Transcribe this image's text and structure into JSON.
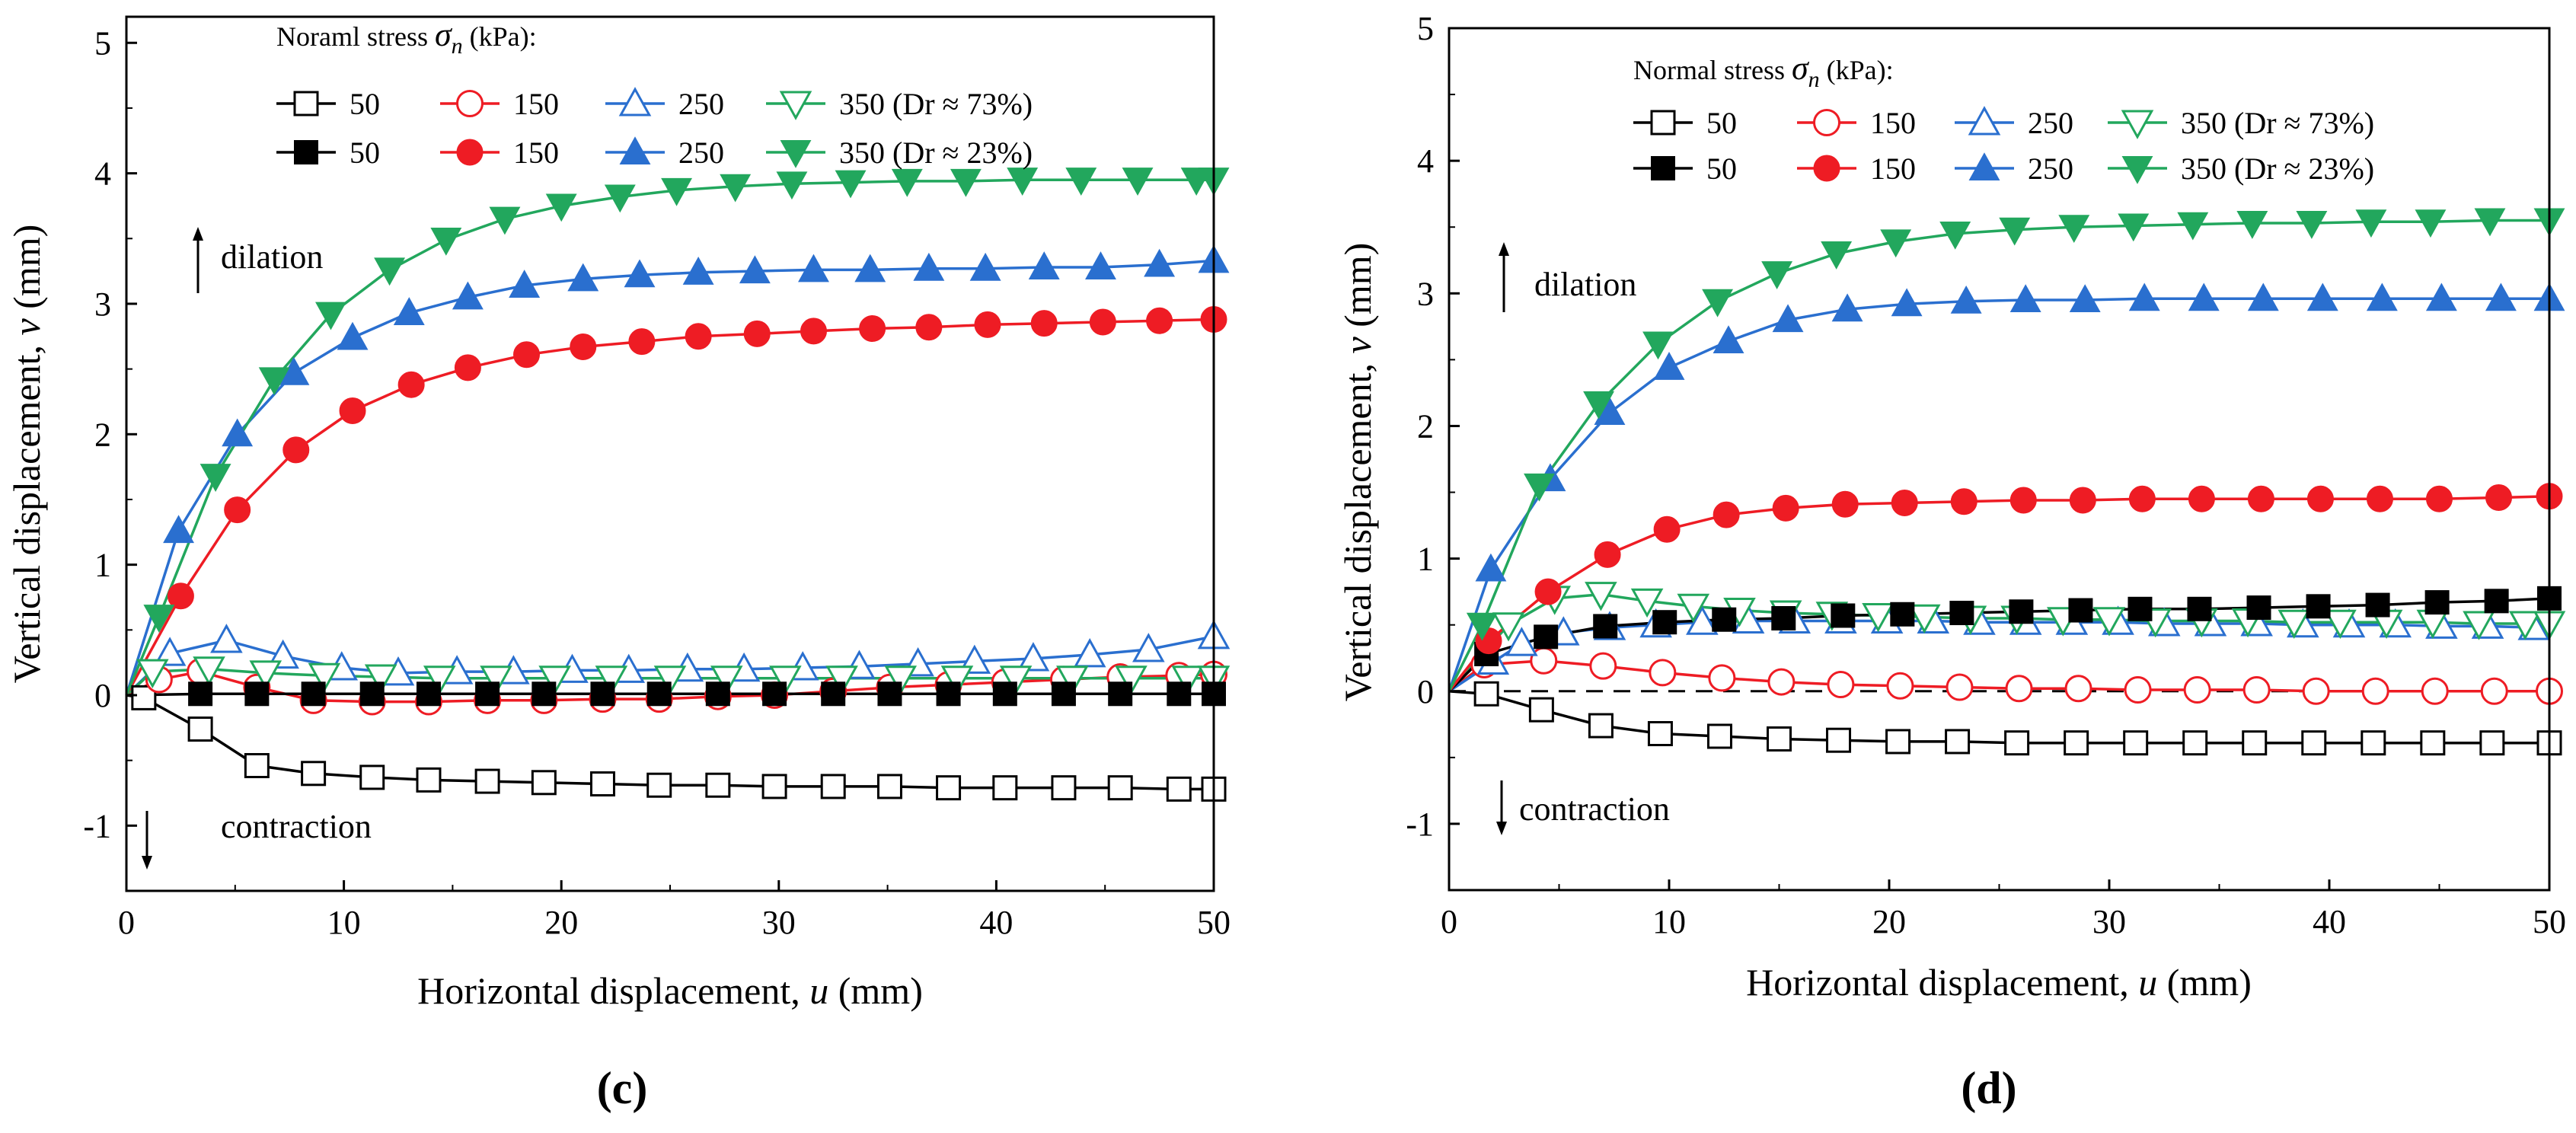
{
  "colors": {
    "s50": "#000000",
    "s150": "#ee1c24",
    "s250": "#2a6fcf",
    "s350": "#22a75d"
  },
  "chart_data": [
    {
      "panel": "(c)",
      "type": "line",
      "xlabel_main": "Horizontal displacement, ",
      "xlabel_var": "u",
      "xlabel_unit": " (mm)",
      "ylabel_main": "Vertical displacement, ",
      "ylabel_var": "v",
      "ylabel_unit": " (mm)",
      "xlim": [
        0,
        50
      ],
      "ylim": [
        -1.5,
        5.2
      ],
      "xticks": [
        0,
        10,
        20,
        30,
        40,
        50
      ],
      "yticks": [
        -1,
        0,
        1,
        2,
        3,
        4,
        5
      ],
      "legend_title_main": "Noraml stress ",
      "legend_title_var": "σ",
      "legend_title_sub": "n",
      "legend_title_unit": " (kPa):",
      "dr_row1": "350 (Dr ≈ 73%)",
      "dr_row2": "350 (Dr ≈ 23%)",
      "dilation_label": "dilation",
      "contraction_label": "contraction",
      "dashed_zero": false,
      "series": [
        {
          "name": "50",
          "row": 1,
          "marker": "square",
          "filled": false,
          "color": "#000000",
          "x": [
            0,
            0.8,
            3.4,
            6,
            8.6,
            11.3,
            13.9,
            16.6,
            19.2,
            21.9,
            24.5,
            27.2,
            29.8,
            32.5,
            35.1,
            37.8,
            40.4,
            43.1,
            45.7,
            48.4,
            50
          ],
          "y": [
            0,
            -0.02,
            -0.26,
            -0.54,
            -0.6,
            -0.63,
            -0.65,
            -0.66,
            -0.67,
            -0.68,
            -0.69,
            -0.69,
            -0.7,
            -0.7,
            -0.7,
            -0.71,
            -0.71,
            -0.71,
            -0.71,
            -0.72,
            -0.72
          ]
        },
        {
          "name": "150",
          "row": 1,
          "marker": "circle",
          "filled": false,
          "color": "#ee1c24",
          "x": [
            0,
            1.5,
            3.4,
            6,
            8.6,
            11.3,
            13.9,
            16.6,
            19.2,
            21.9,
            24.5,
            27.2,
            29.8,
            32.5,
            35.1,
            37.8,
            40.4,
            43.1,
            45.7,
            48.4,
            50
          ],
          "y": [
            0,
            0.12,
            0.18,
            0.06,
            -0.04,
            -0.05,
            -0.05,
            -0.04,
            -0.04,
            -0.03,
            -0.03,
            -0.01,
            0.0,
            0.03,
            0.06,
            0.08,
            0.1,
            0.12,
            0.14,
            0.15,
            0.16
          ]
        },
        {
          "name": "250",
          "row": 1,
          "marker": "triangle-up",
          "filled": false,
          "color": "#2a6fcf",
          "x": [
            0,
            2,
            4.6,
            7.2,
            9.9,
            12.5,
            15.2,
            17.8,
            20.5,
            23.1,
            25.8,
            28.4,
            31.1,
            33.7,
            36.4,
            39,
            41.7,
            44.3,
            47,
            50
          ],
          "y": [
            0,
            0.32,
            0.42,
            0.3,
            0.21,
            0.17,
            0.18,
            0.18,
            0.19,
            0.19,
            0.2,
            0.2,
            0.21,
            0.22,
            0.24,
            0.26,
            0.28,
            0.31,
            0.35,
            0.45
          ]
        },
        {
          "name": "350",
          "row": 1,
          "marker": "triangle-down",
          "filled": false,
          "color": "#22a75d",
          "x": [
            0,
            1.2,
            3.8,
            6.4,
            9.1,
            11.7,
            14.4,
            17,
            19.7,
            22.3,
            25,
            27.6,
            30.3,
            32.9,
            35.6,
            38.2,
            40.9,
            43.5,
            46.2,
            48.8,
            50
          ],
          "y": [
            0,
            0.18,
            0.2,
            0.17,
            0.15,
            0.14,
            0.13,
            0.13,
            0.13,
            0.13,
            0.13,
            0.13,
            0.13,
            0.13,
            0.13,
            0.13,
            0.13,
            0.13,
            0.13,
            0.13,
            0.13
          ]
        },
        {
          "name": "50",
          "row": 2,
          "marker": "square",
          "filled": true,
          "color": "#000000",
          "x": [
            0,
            3.4,
            6,
            8.6,
            11.3,
            13.9,
            16.6,
            19.2,
            21.9,
            24.5,
            27.2,
            29.8,
            32.5,
            35.1,
            37.8,
            40.4,
            43.1,
            45.7,
            48.4,
            50
          ],
          "y": [
            0,
            0.01,
            0.01,
            0.01,
            0.01,
            0.01,
            0.01,
            0.01,
            0.01,
            0.01,
            0.01,
            0.01,
            0.01,
            0.01,
            0.01,
            0.01,
            0.01,
            0.01,
            0.01,
            0.01
          ]
        },
        {
          "name": "150",
          "row": 2,
          "marker": "circle",
          "filled": true,
          "color": "#ee1c24",
          "x": [
            0,
            2.5,
            5.1,
            7.8,
            10.4,
            13.1,
            15.7,
            18.4,
            21,
            23.7,
            26.3,
            29,
            31.6,
            34.3,
            36.9,
            39.6,
            42.2,
            44.9,
            47.5,
            50
          ],
          "y": [
            0,
            0.76,
            1.42,
            1.88,
            2.18,
            2.38,
            2.51,
            2.61,
            2.67,
            2.71,
            2.75,
            2.77,
            2.79,
            2.81,
            2.82,
            2.84,
            2.85,
            2.86,
            2.87,
            2.88
          ]
        },
        {
          "name": "250",
          "row": 2,
          "marker": "triangle-up",
          "filled": true,
          "color": "#2a6fcf",
          "x": [
            0,
            2.4,
            5.1,
            7.7,
            10.4,
            13,
            15.7,
            18.3,
            21,
            23.6,
            26.3,
            28.9,
            31.6,
            34.2,
            36.9,
            39.5,
            42.2,
            44.8,
            47.5,
            50
          ],
          "y": [
            0,
            1.26,
            2.0,
            2.47,
            2.74,
            2.93,
            3.05,
            3.14,
            3.19,
            3.22,
            3.24,
            3.25,
            3.26,
            3.26,
            3.27,
            3.27,
            3.28,
            3.28,
            3.3,
            3.33
          ]
        },
        {
          "name": "350",
          "row": 2,
          "marker": "triangle-down",
          "filled": true,
          "color": "#22a75d",
          "x": [
            0,
            1.5,
            4.1,
            6.8,
            9.4,
            12.1,
            14.7,
            17.4,
            20,
            22.7,
            25.3,
            28,
            30.6,
            33.3,
            35.9,
            38.6,
            41.2,
            43.9,
            46.5,
            49.2,
            50
          ],
          "y": [
            0,
            0.6,
            1.68,
            2.42,
            2.92,
            3.26,
            3.49,
            3.65,
            3.75,
            3.82,
            3.87,
            3.9,
            3.92,
            3.93,
            3.94,
            3.94,
            3.95,
            3.95,
            3.95,
            3.95,
            3.95
          ]
        }
      ]
    },
    {
      "panel": "(d)",
      "type": "line",
      "xlabel_main": "Horizontal displacement, ",
      "xlabel_var": "u",
      "xlabel_unit": " (mm)",
      "ylabel_main": "Vertical displacement, ",
      "ylabel_var": "v",
      "ylabel_unit": " (mm)",
      "xlim": [
        0,
        50
      ],
      "ylim": [
        -1.5,
        5
      ],
      "xticks": [
        0,
        10,
        20,
        30,
        40,
        50
      ],
      "yticks": [
        -1,
        0,
        1,
        2,
        3,
        4,
        5
      ],
      "legend_title_main": "Normal stress ",
      "legend_title_var": "σ",
      "legend_title_sub": "n",
      "legend_title_unit": " (kPa):",
      "dr_row1": "350 (Dr ≈ 73%)",
      "dr_row2": "350 (Dr ≈ 23%)",
      "dilation_label": "dilation",
      "contraction_label": "contraction",
      "dashed_zero": true,
      "series": [
        {
          "name": "50",
          "row": 1,
          "marker": "square",
          "filled": false,
          "color": "#000000",
          "x": [
            0,
            1.7,
            4.2,
            6.9,
            9.6,
            12.3,
            15,
            17.7,
            20.4,
            23.1,
            25.8,
            28.5,
            31.2,
            33.9,
            36.6,
            39.3,
            42,
            44.7,
            47.4,
            50
          ],
          "y": [
            0,
            -0.02,
            -0.14,
            -0.26,
            -0.32,
            -0.34,
            -0.36,
            -0.37,
            -0.38,
            -0.38,
            -0.39,
            -0.39,
            -0.39,
            -0.39,
            -0.39,
            -0.39,
            -0.39,
            -0.39,
            -0.39,
            -0.39
          ]
        },
        {
          "name": "150",
          "row": 1,
          "marker": "circle",
          "filled": false,
          "color": "#ee1c24",
          "x": [
            0,
            1.6,
            4.3,
            7,
            9.7,
            12.4,
            15.1,
            17.8,
            20.5,
            23.2,
            25.9,
            28.6,
            31.3,
            34,
            36.7,
            39.4,
            42.1,
            44.8,
            47.5,
            50
          ],
          "y": [
            0,
            0.2,
            0.23,
            0.19,
            0.14,
            0.1,
            0.07,
            0.05,
            0.04,
            0.03,
            0.02,
            0.02,
            0.01,
            0.01,
            0.01,
            0.0,
            0.0,
            0.0,
            0.0,
            0.0
          ]
        },
        {
          "name": "250",
          "row": 1,
          "marker": "triangle-up",
          "filled": false,
          "color": "#2a6fcf",
          "x": [
            0,
            2,
            3.3,
            5.2,
            7.3,
            9.4,
            11.5,
            13.6,
            15.7,
            17.8,
            19.9,
            22,
            24.1,
            26.2,
            28.3,
            30.4,
            32.5,
            34.6,
            36.7,
            38.8,
            40.9,
            43,
            45.1,
            47.2,
            49.3
          ],
          "y": [
            0,
            0.22,
            0.36,
            0.44,
            0.48,
            0.5,
            0.52,
            0.53,
            0.53,
            0.53,
            0.53,
            0.53,
            0.52,
            0.52,
            0.52,
            0.52,
            0.51,
            0.51,
            0.51,
            0.5,
            0.5,
            0.5,
            0.49,
            0.49,
            0.48
          ]
        },
        {
          "name": "350",
          "row": 1,
          "marker": "triangle-down",
          "filled": false,
          "color": "#22a75d",
          "x": [
            0,
            2.7,
            4.8,
            6.9,
            9,
            11.1,
            13.2,
            15.3,
            17.4,
            19.5,
            21.6,
            23.7,
            25.8,
            27.9,
            30,
            32.1,
            34.2,
            36.3,
            38.4,
            40.5,
            42.6,
            44.7,
            46.8,
            48.9,
            50
          ],
          "y": [
            0,
            0.5,
            0.7,
            0.73,
            0.68,
            0.64,
            0.61,
            0.59,
            0.58,
            0.57,
            0.56,
            0.55,
            0.55,
            0.54,
            0.54,
            0.53,
            0.53,
            0.53,
            0.52,
            0.52,
            0.52,
            0.52,
            0.51,
            0.51,
            0.51
          ]
        },
        {
          "name": "50",
          "row": 2,
          "marker": "square",
          "filled": true,
          "color": "#000000",
          "x": [
            0,
            1.7,
            4.4,
            7.1,
            9.8,
            12.5,
            15.2,
            17.9,
            20.6,
            23.3,
            26,
            28.7,
            31.4,
            34.1,
            36.8,
            39.5,
            42.2,
            44.9,
            47.6,
            50
          ],
          "y": [
            0,
            0.28,
            0.41,
            0.49,
            0.52,
            0.54,
            0.55,
            0.57,
            0.58,
            0.59,
            0.6,
            0.61,
            0.62,
            0.62,
            0.63,
            0.64,
            0.65,
            0.67,
            0.68,
            0.7
          ]
        },
        {
          "name": "150",
          "row": 2,
          "marker": "circle",
          "filled": true,
          "color": "#ee1c24",
          "x": [
            0,
            1.8,
            4.5,
            7.2,
            9.9,
            12.6,
            15.3,
            18,
            20.7,
            23.4,
            26.1,
            28.8,
            31.5,
            34.2,
            36.9,
            39.6,
            42.3,
            45,
            47.7,
            50
          ],
          "y": [
            0,
            0.38,
            0.75,
            1.03,
            1.22,
            1.33,
            1.38,
            1.41,
            1.42,
            1.43,
            1.44,
            1.44,
            1.45,
            1.45,
            1.45,
            1.45,
            1.45,
            1.45,
            1.46,
            1.47
          ]
        },
        {
          "name": "250",
          "row": 2,
          "marker": "triangle-up",
          "filled": true,
          "color": "#2a6fcf",
          "x": [
            0,
            1.9,
            4.6,
            7.3,
            10,
            12.7,
            15.4,
            18.1,
            20.8,
            23.5,
            26.2,
            28.9,
            31.6,
            34.3,
            37,
            39.7,
            42.4,
            45.1,
            47.8,
            50
          ],
          "y": [
            0,
            0.92,
            1.6,
            2.1,
            2.44,
            2.64,
            2.8,
            2.88,
            2.92,
            2.94,
            2.95,
            2.95,
            2.96,
            2.96,
            2.96,
            2.96,
            2.96,
            2.96,
            2.96,
            2.96
          ]
        },
        {
          "name": "350",
          "row": 2,
          "marker": "triangle-down",
          "filled": true,
          "color": "#22a75d",
          "x": [
            0,
            1.5,
            4.1,
            6.8,
            9.5,
            12.2,
            14.9,
            17.6,
            20.3,
            23,
            25.7,
            28.4,
            31.1,
            33.8,
            36.5,
            39.2,
            41.9,
            44.6,
            47.3,
            50
          ],
          "y": [
            0,
            0.5,
            1.55,
            2.17,
            2.62,
            2.94,
            3.15,
            3.3,
            3.39,
            3.45,
            3.48,
            3.5,
            3.51,
            3.52,
            3.53,
            3.53,
            3.54,
            3.54,
            3.55,
            3.55
          ]
        }
      ]
    }
  ]
}
